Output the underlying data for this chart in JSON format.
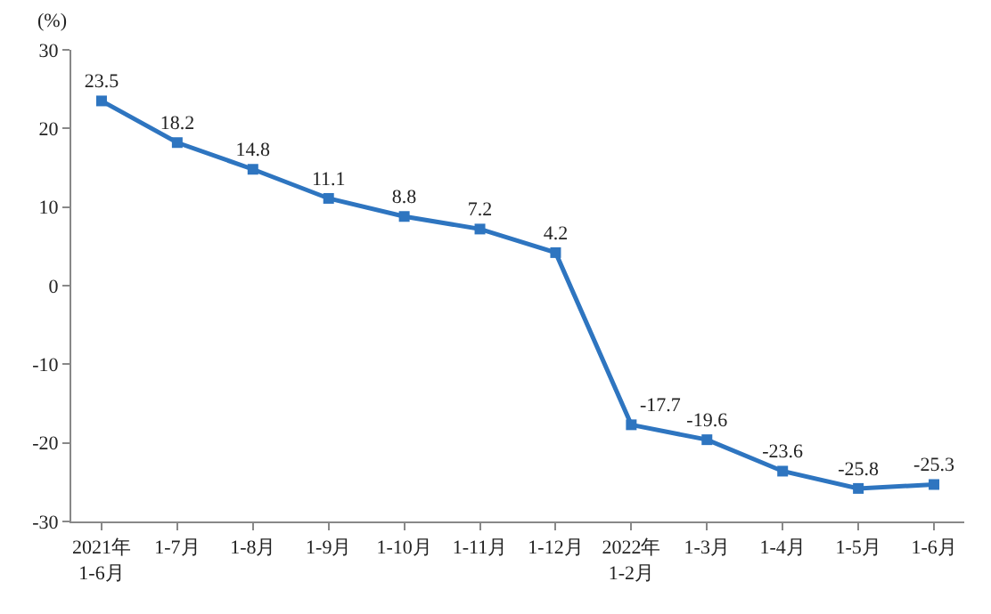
{
  "chart_data": {
    "type": "line",
    "ylabel": "(%)",
    "categories": [
      "2021年\n1-6月",
      "1-7月",
      "1-8月",
      "1-9月",
      "1-10月",
      "1-11月",
      "1-12月",
      "2022年\n1-2月",
      "1-3月",
      "1-4月",
      "1-5月",
      "1-6月"
    ],
    "series": [
      {
        "color": "#2e75c0",
        "values": [
          23.5,
          18.2,
          14.8,
          11.1,
          8.8,
          7.2,
          4.2,
          -17.7,
          -19.6,
          -23.6,
          -25.8,
          -25.3
        ]
      }
    ],
    "ylim": [
      -30,
      30
    ],
    "yticks": [
      -30,
      -20,
      -10,
      0,
      10,
      20,
      30
    ],
    "data_labels": true,
    "marker": "square",
    "line_style": "solid",
    "grid": false,
    "legend": false
  }
}
